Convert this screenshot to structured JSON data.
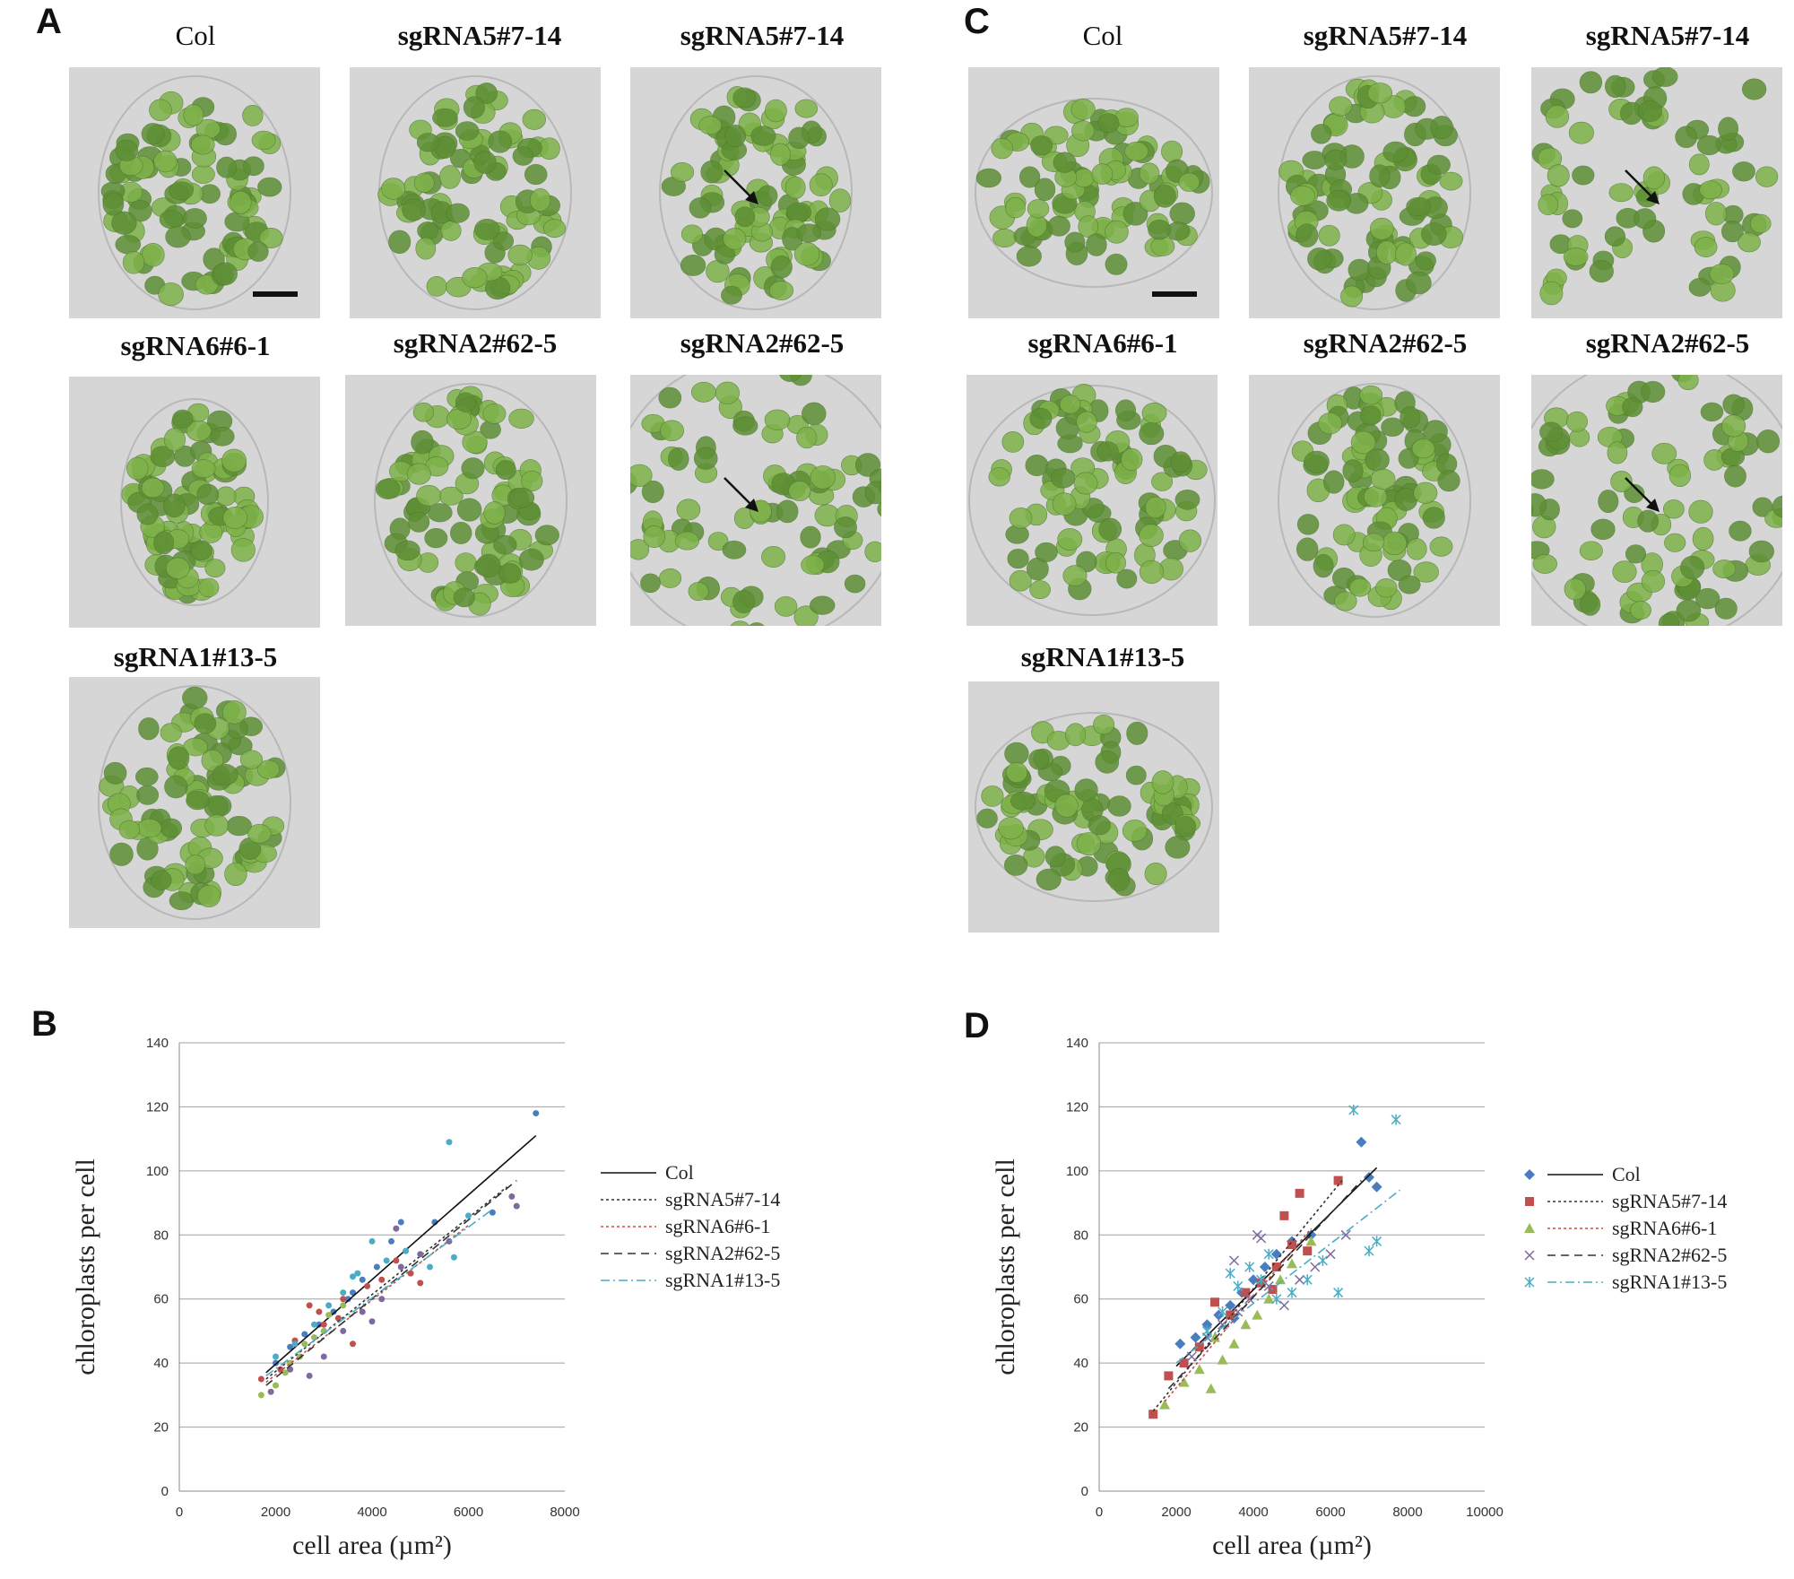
{
  "panels": {
    "A": {
      "letter": "A"
    },
    "B": {
      "letter": "B"
    },
    "C": {
      "letter": "C"
    },
    "D": {
      "letter": "D"
    }
  },
  "image_labels": {
    "col": "Col",
    "sg5": "sgRNA5#7-14",
    "sg6": "sgRNA6#6-1",
    "sg2": "sgRNA2#62-5",
    "sg1": "sgRNA1#13-5"
  },
  "colors": {
    "cell_bg": "#d6d6d6",
    "chloroplast": "#7fb24a",
    "chloroplast_dark": "#5e8f34",
    "col": "#4a7dbf",
    "sg5": "#c0504d",
    "sg6": "#9bbb59",
    "sg2": "#7f6aa0",
    "sg1": "#4bacc6"
  },
  "chart_data": [
    {
      "id": "B",
      "type": "scatter",
      "xlabel": "cell area (µm²)",
      "ylabel": "chloroplasts per cell",
      "xlim": [
        0,
        8000
      ],
      "ylim": [
        0,
        140
      ],
      "xticks": [
        0,
        2000,
        4000,
        6000,
        8000
      ],
      "yticks": [
        0,
        20,
        40,
        60,
        80,
        100,
        120,
        140
      ],
      "xtick_labels": [
        "0",
        "2000",
        "4000",
        "6000",
        "8000"
      ],
      "ytick_labels": [
        "0",
        "20",
        "40",
        "60",
        "80",
        "100",
        "120",
        "140"
      ],
      "legend": "right",
      "legend_markers": false,
      "series": [
        {
          "key": "col",
          "name": "Col",
          "line": "solid",
          "trend": [
            [
              1800,
              37
            ],
            [
              7400,
              111
            ]
          ],
          "points": [
            [
              2000,
              40
            ],
            [
              2300,
              45
            ],
            [
              2600,
              49
            ],
            [
              2900,
              52
            ],
            [
              3200,
              56
            ],
            [
              3500,
              60
            ],
            [
              3800,
              66
            ],
            [
              4100,
              70
            ],
            [
              4400,
              78
            ],
            [
              4600,
              84
            ],
            [
              5300,
              84
            ],
            [
              6500,
              87
            ],
            [
              7400,
              118
            ],
            [
              3000,
              50
            ],
            [
              3600,
              62
            ]
          ]
        },
        {
          "key": "sg5",
          "name": "sgRNA5#7-14",
          "line": "dotted",
          "trend": [
            [
              1800,
              35
            ],
            [
              6800,
              95
            ]
          ],
          "points": [
            [
              1700,
              35
            ],
            [
              2100,
              38
            ],
            [
              2400,
              47
            ],
            [
              2700,
              58
            ],
            [
              3000,
              52
            ],
            [
              3300,
              54
            ],
            [
              3600,
              46
            ],
            [
              3900,
              64
            ],
            [
              4200,
              66
            ],
            [
              4500,
              72
            ],
            [
              4800,
              68
            ],
            [
              5000,
              65
            ],
            [
              2900,
              56
            ],
            [
              3400,
              60
            ]
          ]
        },
        {
          "key": "sg6",
          "name": "sgRNA6#6-1",
          "line": "dotted",
          "trend": [
            [
              1800,
              34
            ],
            [
              6000,
              83
            ]
          ],
          "points": [
            [
              1700,
              30
            ],
            [
              2000,
              33
            ],
            [
              2200,
              37
            ],
            [
              2500,
              42
            ],
            [
              2800,
              48
            ],
            [
              3100,
              55
            ],
            [
              3400,
              58
            ],
            [
              2300,
              40
            ],
            [
              2600,
              46
            ],
            [
              3000,
              50
            ]
          ]
        },
        {
          "key": "sg2",
          "name": "sgRNA2#62-5",
          "line": "dashed",
          "trend": [
            [
              1800,
              33
            ],
            [
              7000,
              97
            ]
          ],
          "points": [
            [
              1900,
              31
            ],
            [
              2300,
              38
            ],
            [
              2700,
              36
            ],
            [
              3000,
              42
            ],
            [
              3400,
              50
            ],
            [
              3800,
              56
            ],
            [
              4200,
              60
            ],
            [
              4600,
              70
            ],
            [
              5000,
              74
            ],
            [
              5600,
              78
            ],
            [
              7000,
              89
            ],
            [
              6900,
              92
            ],
            [
              4000,
              53
            ],
            [
              4500,
              82
            ]
          ]
        },
        {
          "key": "sg1",
          "name": "sgRNA1#13-5",
          "line": "dashdot",
          "trend": [
            [
              1800,
              36
            ],
            [
              6500,
              88
            ]
          ],
          "points": [
            [
              2000,
              42
            ],
            [
              2400,
              46
            ],
            [
              2800,
              52
            ],
            [
              3100,
              58
            ],
            [
              3400,
              62
            ],
            [
              3700,
              68
            ],
            [
              4000,
              78
            ],
            [
              4300,
              72
            ],
            [
              4700,
              75
            ],
            [
              5200,
              70
            ],
            [
              5600,
              109
            ],
            [
              5700,
              73
            ],
            [
              6000,
              86
            ],
            [
              3600,
              67
            ]
          ]
        }
      ]
    },
    {
      "id": "D",
      "type": "scatter",
      "xlabel": "cell area (µm²)",
      "ylabel": "chloroplasts per cell",
      "xlim": [
        0,
        10000
      ],
      "ylim": [
        0,
        140
      ],
      "xticks": [
        0,
        2000,
        4000,
        6000,
        8000,
        10000
      ],
      "yticks": [
        0,
        20,
        40,
        60,
        80,
        100,
        120,
        140
      ],
      "xtick_labels": [
        "0",
        "2000",
        "4000",
        "6000",
        "8000",
        "10000"
      ],
      "ytick_labels": [
        "0",
        "20",
        "40",
        "60",
        "80",
        "100",
        "120",
        "140"
      ],
      "legend": "right",
      "legend_markers": true,
      "series": [
        {
          "key": "col",
          "name": "Col",
          "marker": "diamond",
          "line": "solid",
          "trend": [
            [
              2000,
              39
            ],
            [
              7200,
              101
            ]
          ],
          "points": [
            [
              2100,
              46
            ],
            [
              2500,
              48
            ],
            [
              2800,
              52
            ],
            [
              3100,
              55
            ],
            [
              3400,
              58
            ],
            [
              3700,
              62
            ],
            [
              4000,
              66
            ],
            [
              4300,
              70
            ],
            [
              4600,
              74
            ],
            [
              5000,
              78
            ],
            [
              5500,
              80
            ],
            [
              6800,
              109
            ],
            [
              7000,
              98
            ],
            [
              7200,
              95
            ],
            [
              3500,
              54
            ]
          ]
        },
        {
          "key": "sg5",
          "name": "sgRNA5#7-14",
          "marker": "square",
          "line": "dotted",
          "trend": [
            [
              1400,
              25
            ],
            [
              6300,
              97
            ]
          ],
          "points": [
            [
              1400,
              24
            ],
            [
              1800,
              36
            ],
            [
              2200,
              40
            ],
            [
              2600,
              45
            ],
            [
              3000,
              59
            ],
            [
              3400,
              55
            ],
            [
              3800,
              62
            ],
            [
              4200,
              65
            ],
            [
              4600,
              70
            ],
            [
              4800,
              86
            ],
            [
              5200,
              93
            ],
            [
              5400,
              75
            ],
            [
              6200,
              97
            ],
            [
              4500,
              63
            ],
            [
              5000,
              77
            ]
          ]
        },
        {
          "key": "sg6",
          "name": "sgRNA6#6-1",
          "marker": "triangle",
          "line": "dotted",
          "trend": [
            [
              1700,
              28
            ],
            [
              5500,
              82
            ]
          ],
          "points": [
            [
              1700,
              27
            ],
            [
              2200,
              34
            ],
            [
              2600,
              38
            ],
            [
              2900,
              32
            ],
            [
              3200,
              41
            ],
            [
              3500,
              46
            ],
            [
              3800,
              52
            ],
            [
              4100,
              55
            ],
            [
              4400,
              60
            ],
            [
              4700,
              66
            ],
            [
              5000,
              71
            ],
            [
              5500,
              78
            ],
            [
              3000,
              48
            ]
          ]
        },
        {
          "key": "sg2",
          "name": "sgRNA2#62-5",
          "marker": "x",
          "line": "dashed",
          "trend": [
            [
              1800,
              32
            ],
            [
              6800,
              97
            ]
          ],
          "points": [
            [
              2400,
              42
            ],
            [
              2800,
              48
            ],
            [
              3200,
              52
            ],
            [
              3600,
              56
            ],
            [
              3900,
              60
            ],
            [
              4100,
              80
            ],
            [
              4400,
              64
            ],
            [
              4800,
              58
            ],
            [
              5200,
              66
            ],
            [
              5600,
              70
            ],
            [
              6000,
              74
            ],
            [
              6400,
              80
            ],
            [
              3500,
              72
            ],
            [
              4200,
              79
            ]
          ]
        },
        {
          "key": "sg1",
          "name": "sgRNA1#13-5",
          "marker": "asterisk",
          "line": "dashdot",
          "trend": [
            [
              2000,
              40
            ],
            [
              7800,
              94
            ]
          ],
          "points": [
            [
              2800,
              50
            ],
            [
              3200,
              56
            ],
            [
              3600,
              64
            ],
            [
              3900,
              70
            ],
            [
              4200,
              66
            ],
            [
              4600,
              60
            ],
            [
              5000,
              62
            ],
            [
              5400,
              66
            ],
            [
              5800,
              72
            ],
            [
              6200,
              62
            ],
            [
              6600,
              119
            ],
            [
              7000,
              75
            ],
            [
              7200,
              78
            ],
            [
              7700,
              116
            ],
            [
              3400,
              68
            ],
            [
              4400,
              74
            ]
          ]
        }
      ]
    }
  ]
}
